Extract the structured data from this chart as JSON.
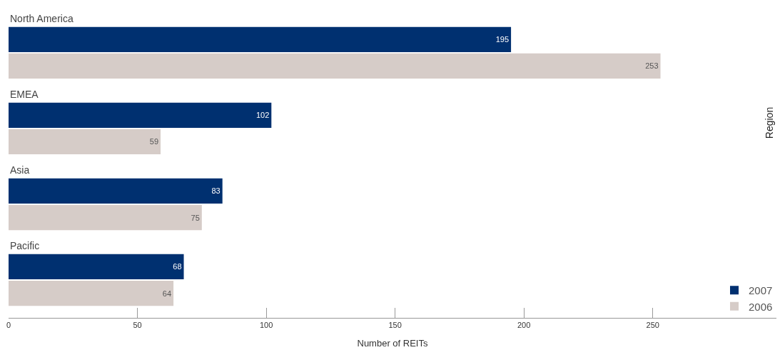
{
  "chart_data": {
    "type": "bar",
    "orientation": "horizontal",
    "xlabel": "Number of REITs",
    "ylabel": "Region",
    "categories": [
      "North America",
      "EMEA",
      "Asia",
      "Pacific"
    ],
    "series": [
      {
        "name": "2007",
        "color": "#003070",
        "values": [
          195,
          102,
          83,
          68
        ]
      },
      {
        "name": "2006",
        "color": "#d6ccc8",
        "values": [
          253,
          59,
          75,
          64
        ]
      }
    ],
    "xlim": [
      0,
      298
    ],
    "xticks": [
      0,
      50,
      100,
      150,
      200,
      250
    ],
    "data_labels": true,
    "legend": "bottom right"
  }
}
